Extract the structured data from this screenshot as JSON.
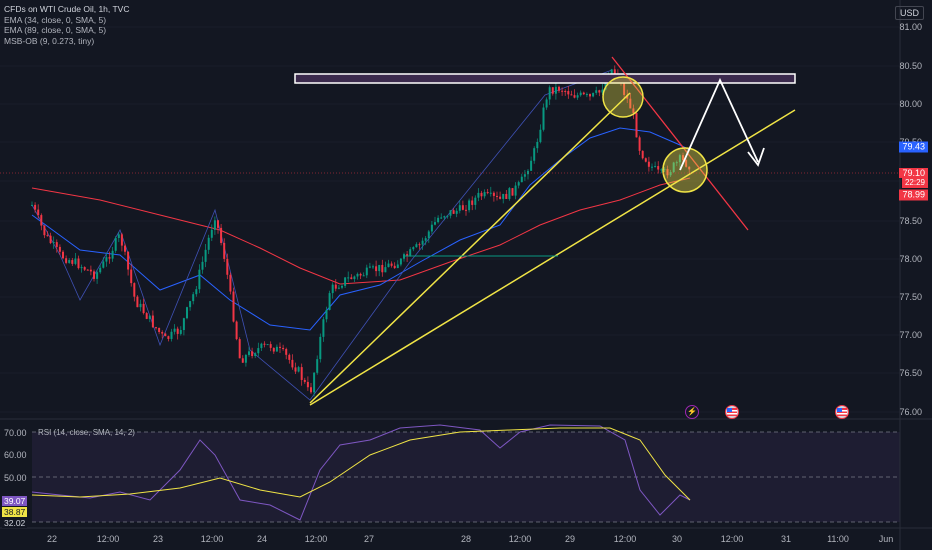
{
  "legend": {
    "title": "CFDs on WTI Crude Oil, 1h, TVC",
    "indicators": [
      "EMA (34, close, 0, SMA, 5)",
      "EMA (89, close, 0, SMA, 5)",
      "MSB-OB (9, 0.273, tiny)"
    ]
  },
  "currency_button": "USD",
  "price_axis": [
    "81.00",
    "80.50",
    "80.00",
    "79.50",
    "79.00",
    "78.50",
    "78.00",
    "77.50",
    "77.00",
    "76.50",
    "76.00"
  ],
  "price_tags": {
    "ema34": "79.43",
    "last": "79.10",
    "countdown": "22:29",
    "low": "78.99"
  },
  "rsi": {
    "legend": "RSI (14, close, SMA, 14, 2)",
    "levels": [
      "70.00",
      "60.00",
      "50.00"
    ],
    "values": {
      "rsi": "39.07",
      "ma": "38.87",
      "lower": "32.02"
    }
  },
  "time_axis": [
    "22",
    "12:00",
    "23",
    "12:00",
    "24",
    "12:00",
    "27",
    "28",
    "12:00",
    "29",
    "12:00",
    "30",
    "12:00",
    "31",
    "11:00",
    "Jun"
  ],
  "colors": {
    "bg": "#131722",
    "up": "#089981",
    "down": "#f23645",
    "rsi": "#7e57c2",
    "yellow": "#f0e446"
  },
  "events": [
    "lightning-icon",
    "us-flag-icon",
    "us-flag-icon"
  ]
}
